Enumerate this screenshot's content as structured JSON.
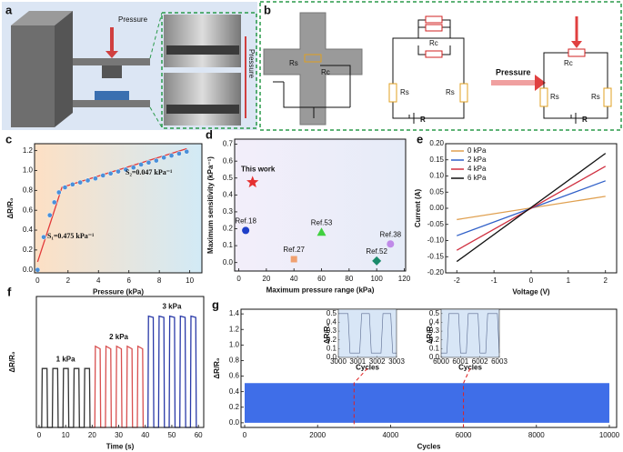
{
  "schematics": {
    "a": {
      "panel": "a",
      "pressure": "Pressure",
      "photo_pressure": "Pressure"
    },
    "b": {
      "panel": "b",
      "pressure": "Pressure",
      "rc": "Rc",
      "rs": "Rs",
      "r": "R"
    }
  },
  "chart_data": [
    {
      "type": "line",
      "panel": "c",
      "xlabel": "Pressure (kPa)",
      "ylabel": "ΔR/R₀",
      "background": [
        "#fde0c4",
        "#d2eaf6"
      ],
      "xlim": [
        -0.2,
        10.8
      ],
      "ylim": [
        -0.03,
        1.27
      ],
      "xticks": [
        0,
        2,
        4,
        6,
        8,
        10
      ],
      "yticks": [
        {
          "value": 0,
          "label": "0.0"
        },
        {
          "value": 0.2,
          "label": "0.2"
        },
        {
          "value": 0.4,
          "label": "0.4"
        },
        {
          "value": 0.6,
          "label": "0.6"
        },
        {
          "value": 0.8,
          "label": "0.8"
        },
        {
          "value": 1,
          "label": "1.0"
        },
        {
          "value": 1.2,
          "label": "1.2"
        }
      ],
      "series": [
        {
          "mode": "lines",
          "color": "#e23a3a",
          "x": [
            0,
            1.6,
            9.8
          ],
          "values": [
            0.08,
            0.83,
            1.22
          ]
        },
        {
          "mode": "markers",
          "color": "#4a90d9",
          "x": [
            0,
            0.4,
            0.8,
            1.1,
            1.4,
            1.8,
            2.3,
            2.8,
            3.3,
            3.8,
            4.3,
            4.8,
            5.3,
            5.8,
            6.3,
            6.8,
            7.3,
            7.8,
            8.3,
            8.8,
            9.3,
            9.8
          ],
          "values": [
            0,
            0.33,
            0.55,
            0.68,
            0.78,
            0.83,
            0.86,
            0.88,
            0.9,
            0.92,
            0.95,
            0.97,
            0.99,
            1.01,
            1.03,
            1.06,
            1.08,
            1.1,
            1.13,
            1.15,
            1.17,
            1.19
          ]
        }
      ],
      "annotations": [
        "S₁=0.475 kPa⁻¹",
        "S₂=0.047 kPa⁻¹"
      ]
    },
    {
      "type": "scatter",
      "panel": "d",
      "xlabel": "Maximum pressure range (kPa)",
      "ylabel": "Maximum sensitivity (kPa⁻¹)",
      "background": [
        "#f3eefa",
        "#e6ecf8"
      ],
      "xlim": [
        -3,
        121
      ],
      "ylim": [
        -0.05,
        0.73
      ],
      "xticks": [
        0,
        20,
        40,
        60,
        80,
        100,
        120
      ],
      "yticks": [
        {
          "value": 0,
          "label": "0.0"
        },
        {
          "value": 0.1,
          "label": "0.1"
        },
        {
          "value": 0.2,
          "label": "0.2"
        },
        {
          "value": 0.3,
          "label": "0.3"
        },
        {
          "value": 0.4,
          "label": "0.4"
        },
        {
          "value": 0.5,
          "label": "0.5"
        },
        {
          "value": 0.6,
          "label": "0.6"
        },
        {
          "value": 0.7,
          "label": "0.7"
        }
      ],
      "points": [
        {
          "label": "This work",
          "x": 10,
          "y": 0.475,
          "color": "#e53030",
          "marker": "star"
        },
        {
          "label": "Ref.18",
          "x": 5,
          "y": 0.19,
          "color": "#1f3fc8",
          "marker": "circle"
        },
        {
          "label": "Ref.27",
          "x": 40,
          "y": 0.02,
          "color": "#f0a070",
          "marker": "square"
        },
        {
          "label": "Ref.53",
          "x": 60,
          "y": 0.18,
          "color": "#40d040",
          "marker": "triangle"
        },
        {
          "label": "Ref.52",
          "x": 100,
          "y": 0.01,
          "color": "#1a8a6a",
          "marker": "diamond"
        },
        {
          "label": "Ref.38",
          "x": 110,
          "y": 0.11,
          "color": "#c08ae8",
          "marker": "circle"
        }
      ]
    },
    {
      "type": "line",
      "panel": "e",
      "xlabel": "Voltage (V)",
      "ylabel": "Current (A)",
      "legend": "top-left",
      "xlim": [
        -2.3,
        2.3
      ],
      "ylim": [
        -0.2,
        0.2
      ],
      "xticks": [
        -2,
        -1,
        0,
        1,
        2
      ],
      "yticks": [
        {
          "value": -0.2,
          "label": "-0.20"
        },
        {
          "value": -0.15,
          "label": "-0.15"
        },
        {
          "value": -0.1,
          "label": "-0.10"
        },
        {
          "value": -0.05,
          "label": "-0.05"
        },
        {
          "value": 0,
          "label": "0.00"
        },
        {
          "value": 0.05,
          "label": "0.05"
        },
        {
          "value": 0.1,
          "label": "0.10"
        },
        {
          "value": 0.15,
          "label": "0.15"
        },
        {
          "value": 0.2,
          "label": "0.20"
        }
      ],
      "x": [
        -2,
        2
      ],
      "series": [
        {
          "name": "0 kPa",
          "mode": "lines",
          "color": "#e0a050",
          "values": [
            -0.035,
            0.037
          ]
        },
        {
          "name": "2 kPa",
          "mode": "lines",
          "color": "#3060c8",
          "values": [
            -0.085,
            0.085
          ]
        },
        {
          "name": "4 kPa",
          "mode": "lines",
          "color": "#d03040",
          "values": [
            -0.13,
            0.13
          ]
        },
        {
          "name": "6 kPa",
          "mode": "lines",
          "color": "#111111",
          "values": [
            -0.165,
            0.17
          ]
        }
      ]
    },
    {
      "type": "line",
      "panel": "f",
      "xlabel": "Time (s)",
      "ylabel": "ΔR/R₀",
      "xlim": [
        -1,
        62
      ],
      "ylim": [
        0,
        1
      ],
      "xticks": [
        0,
        10,
        20,
        30,
        40,
        50,
        60
      ],
      "yticks": [],
      "series_labels": true,
      "series": [
        {
          "name": "1 kPa",
          "mode": "lines",
          "color": "#333333",
          "x": [
            0,
            1,
            1.2,
            3,
            3.2,
            5,
            5.2,
            7,
            7.2,
            9,
            9.2,
            11,
            11.2,
            13,
            13.2,
            15,
            15.2,
            17,
            17.2,
            19,
            19.2,
            20
          ],
          "values": [
            0,
            0,
            0.45,
            0.45,
            0,
            0,
            0.45,
            0.45,
            0,
            0,
            0.45,
            0.45,
            0,
            0,
            0.45,
            0.45,
            0,
            0,
            0.45,
            0.45,
            0,
            0
          ]
        },
        {
          "name": "2 kPa",
          "mode": "lines",
          "color": "#d85050",
          "x": [
            20,
            21,
            21.2,
            23,
            23.2,
            25,
            25.2,
            27,
            27.2,
            29,
            29.2,
            31,
            31.2,
            33,
            33.2,
            35,
            35.2,
            37,
            37.2,
            39,
            39.2,
            40
          ],
          "values": [
            0,
            0,
            0.62,
            0.6,
            0,
            0,
            0.62,
            0.6,
            0,
            0,
            0.62,
            0.6,
            0,
            0,
            0.62,
            0.6,
            0,
            0,
            0.62,
            0.6,
            0,
            0
          ]
        },
        {
          "name": "3 kPa",
          "mode": "lines",
          "color": "#2a3aa8",
          "x": [
            40,
            41,
            41.2,
            43,
            43.2,
            45,
            45.2,
            47,
            47.2,
            49,
            49.2,
            51,
            51.2,
            53,
            53.2,
            55,
            55.2,
            57,
            57.2,
            59,
            59.2,
            60
          ],
          "values": [
            0,
            0,
            0.85,
            0.84,
            0,
            0,
            0.85,
            0.84,
            0,
            0,
            0.85,
            0.84,
            0,
            0,
            0.85,
            0.84,
            0,
            0,
            0.85,
            0.84,
            0,
            0
          ]
        }
      ]
    },
    {
      "type": "area",
      "panel": "g",
      "xlabel": "Cycles",
      "ylabel": "ΔR/R₀",
      "xlim": [
        -100,
        10200
      ],
      "ylim": [
        -0.06,
        1.46
      ],
      "xticks": [
        0,
        2000,
        4000,
        6000,
        8000,
        10000
      ],
      "yticks": [
        {
          "value": 0,
          "label": "0.0"
        },
        {
          "value": 0.2,
          "label": "0.2"
        },
        {
          "value": 0.4,
          "label": "0.4"
        },
        {
          "value": 0.6,
          "label": "0.6"
        },
        {
          "value": 0.8,
          "label": "0.8"
        },
        {
          "value": 1,
          "label": "1.0"
        },
        {
          "value": 1.2,
          "label": "1.2"
        },
        {
          "value": 1.4,
          "label": "1.4"
        }
      ],
      "series": [
        {
          "mode": "area",
          "color": "#3f6ee8",
          "x": [
            0,
            10000
          ],
          "values": [
            0.51,
            0.51
          ]
        }
      ]
    },
    {
      "type": "line",
      "inset": true,
      "xlabel": "Cycles",
      "ylabel": "ΔR/R₀",
      "background": [
        "#d8e6f6",
        "#d8e6f6"
      ],
      "xlim": [
        3000,
        3003
      ],
      "ylim": [
        0,
        0.55
      ],
      "xticks": [
        3000,
        3001,
        3002,
        3003
      ],
      "yticks": [
        {
          "value": 0,
          "label": "0.0"
        },
        {
          "value": 0.1,
          "label": "0.1"
        },
        {
          "value": 0.2,
          "label": "0.2"
        },
        {
          "value": 0.3,
          "label": "0.3"
        },
        {
          "value": 0.4,
          "label": "0.4"
        },
        {
          "value": 0.5,
          "label": "0.5"
        }
      ],
      "series": [
        {
          "mode": "lines",
          "color": "#5a6a90",
          "x": [
            3000,
            3000.1,
            3000.5,
            3000.6,
            3001.1,
            3001.2,
            3001.6,
            3001.7,
            3002.2,
            3002.3,
            3002.7,
            3002.8,
            3003
          ],
          "values": [
            0.5,
            0.5,
            0.5,
            0.05,
            0.05,
            0.5,
            0.5,
            0.05,
            0.05,
            0.5,
            0.5,
            0.05,
            0.05
          ]
        }
      ]
    },
    {
      "type": "line",
      "inset": true,
      "xlabel": "Cycles",
      "ylabel": "ΔR/R₀",
      "background": [
        "#d8e6f6",
        "#d8e6f6"
      ],
      "xlim": [
        6000,
        6003
      ],
      "ylim": [
        0,
        0.55
      ],
      "xticks": [
        6000,
        6001,
        6002,
        6003
      ],
      "yticks": [
        {
          "value": 0,
          "label": "0.0"
        },
        {
          "value": 0.1,
          "label": "0.1"
        },
        {
          "value": 0.2,
          "label": "0.2"
        },
        {
          "value": 0.3,
          "label": "0.3"
        },
        {
          "value": 0.4,
          "label": "0.4"
        },
        {
          "value": 0.5,
          "label": "0.5"
        }
      ],
      "series": [
        {
          "mode": "lines",
          "color": "#5a6a90",
          "x": [
            6000,
            6000.3,
            6000.4,
            6000.9,
            6001,
            6001.3,
            6001.4,
            6001.9,
            6002,
            6002.3,
            6002.4,
            6002.9,
            6003
          ],
          "values": [
            0.05,
            0.05,
            0.5,
            0.5,
            0.05,
            0.05,
            0.5,
            0.5,
            0.05,
            0.05,
            0.5,
            0.5,
            0.05
          ]
        }
      ]
    }
  ]
}
